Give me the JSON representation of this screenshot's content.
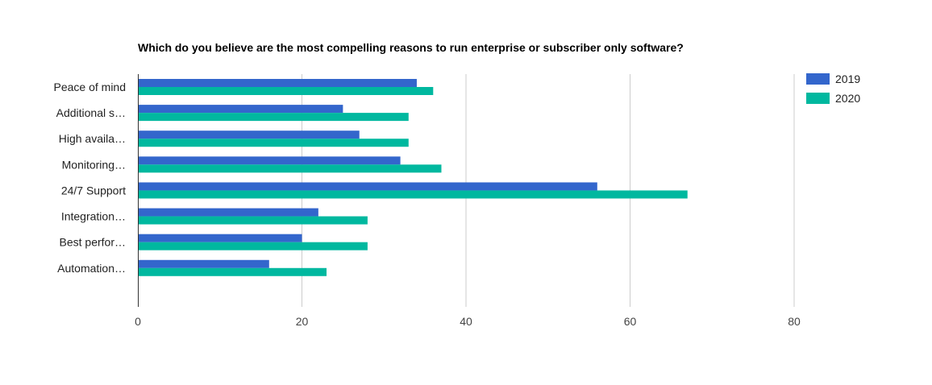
{
  "chart_data": {
    "type": "bar",
    "orientation": "horizontal",
    "title": "Which do you believe are the most compelling reasons to run enterprise or subscriber only software?",
    "xlabel": "",
    "ylabel": "",
    "categories": [
      "Peace of mind",
      "Additional s…",
      "High availa…",
      "Monitoring…",
      "24/7 Support",
      "Integration…",
      "Best perfor…",
      "Automation…"
    ],
    "series": [
      {
        "name": "2019",
        "color": "#3366cc",
        "values": [
          34,
          25,
          27,
          32,
          56,
          22,
          20,
          16
        ]
      },
      {
        "name": "2020",
        "color": "#00b89f",
        "values": [
          36,
          33,
          33,
          37,
          67,
          28,
          28,
          23
        ]
      }
    ],
    "xlim": [
      0,
      80
    ],
    "xticks": [
      "0",
      "20",
      "40",
      "60",
      "80"
    ],
    "grid": true,
    "legend_position": "right"
  }
}
